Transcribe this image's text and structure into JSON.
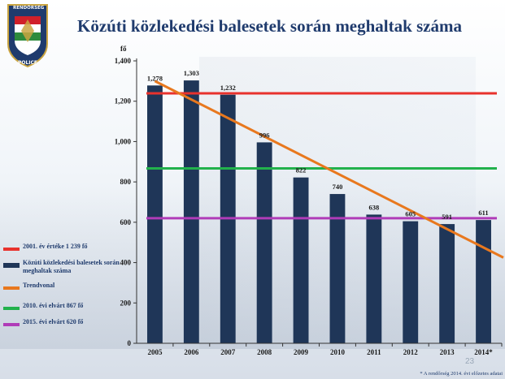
{
  "title": "Közúti közlekedési balesetek során meghaltak száma",
  "logo": {
    "top_text": "RENDŐRSÉG",
    "bottom_text": "POLICE"
  },
  "slide_number": "23",
  "footnote": "* A rendőrség 2014. évi előzetes adatai",
  "colors": {
    "bar": "#1f3658",
    "ref2001": "#e8322d",
    "trend": "#e8781e",
    "ref2010": "#22b14c",
    "ref2015": "#b03cb8",
    "title": "#1f3b6d"
  },
  "legend": [
    {
      "label": "2001. év értéke 1 239 fő",
      "color": "#e8322d",
      "kind": "line"
    },
    {
      "label": "Közúti közlekedési balesetek során meghaltak száma",
      "color": "#1f3658",
      "kind": "bar"
    },
    {
      "label": "Trendvonal",
      "color": "#e8781e",
      "kind": "line"
    },
    {
      "label": "2010. évi elvárt   867 fő",
      "color": "#22b14c",
      "kind": "line"
    },
    {
      "label": "2015. évi elvárt 620 fő",
      "color": "#b03cb8",
      "kind": "line"
    }
  ],
  "chart_data": {
    "type": "bar",
    "title": "Közúti közlekedési balesetek során meghaltak száma",
    "ylabel": "fő",
    "xlabel": "",
    "categories": [
      "2005",
      "2006",
      "2007",
      "2008",
      "2009",
      "2010",
      "2011",
      "2012",
      "2013",
      "2014*"
    ],
    "values": [
      1278,
      1303,
      1232,
      996,
      822,
      740,
      638,
      605,
      591,
      611
    ],
    "value_labels": [
      "1,278",
      "1,303",
      "1,232",
      "996",
      "822",
      "740",
      "638",
      "605",
      "591",
      "611"
    ],
    "ylim": [
      0,
      1400
    ],
    "yticks": [
      0,
      200,
      400,
      600,
      800,
      1000,
      1200,
      1400
    ],
    "ytick_labels": [
      "0",
      "200",
      "400",
      "600",
      "800",
      "1,000",
      "1,200",
      "1,400"
    ],
    "reference_lines": [
      {
        "name": "2001. év értéke 1 239 fő",
        "value": 1239,
        "color": "#e8322d"
      },
      {
        "name": "2010. évi elvárt   867 fő",
        "value": 867,
        "color": "#22b14c"
      },
      {
        "name": "2015. évi elvárt 620 fő",
        "value": 620,
        "color": "#b03cb8"
      }
    ],
    "trendline": {
      "name": "Trendvonal",
      "start": 1300,
      "end": 425,
      "color": "#e8781e"
    },
    "grid": false,
    "legend_position": "left"
  }
}
